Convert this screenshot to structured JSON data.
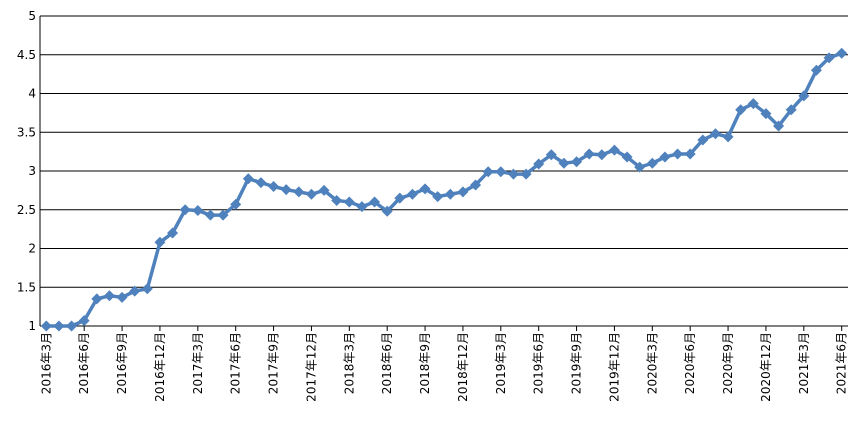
{
  "chart_data": {
    "type": "line",
    "categories": [
      "2016年3月",
      null,
      null,
      "2016年6月",
      null,
      null,
      "2016年9月",
      null,
      null,
      "2016年12月",
      null,
      null,
      "2017年3月",
      null,
      null,
      "2017年6月",
      null,
      null,
      "2017年9月",
      null,
      null,
      "2017年12月",
      null,
      null,
      "2018年3月",
      null,
      null,
      "2018年6月",
      null,
      null,
      "2018年9月",
      null,
      null,
      "2018年12月",
      null,
      null,
      "2019年3月",
      null,
      null,
      "2019年6月",
      null,
      null,
      "2019年9月",
      null,
      null,
      "2019年12月",
      null,
      null,
      "2020年3月",
      null,
      null,
      "2020年6月",
      null,
      null,
      "2020年9月",
      null,
      null,
      "2020年12月",
      null,
      null,
      "2021年3月",
      null,
      null,
      "2021年6月"
    ],
    "values": [
      1.0,
      1.0,
      1.0,
      1.07,
      1.35,
      1.39,
      1.37,
      1.45,
      1.48,
      2.08,
      2.2,
      2.5,
      2.49,
      2.43,
      2.43,
      2.57,
      2.9,
      2.85,
      2.8,
      2.76,
      2.73,
      2.7,
      2.75,
      2.62,
      2.6,
      2.54,
      2.6,
      2.48,
      2.65,
      2.7,
      2.77,
      2.67,
      2.7,
      2.73,
      2.82,
      2.99,
      2.99,
      2.96,
      2.96,
      3.09,
      3.21,
      3.1,
      3.12,
      3.22,
      3.21,
      3.27,
      3.18,
      3.05,
      3.1,
      3.18,
      3.22,
      3.22,
      3.4,
      3.48,
      3.44,
      3.79,
      3.87,
      3.74,
      3.58,
      3.79,
      3.97,
      4.3,
      4.46,
      4.52
    ],
    "color": "#4f81bd",
    "ylim": [
      1,
      5
    ],
    "yticks": [
      1,
      1.5,
      2,
      2.5,
      3,
      3.5,
      4,
      4.5,
      5
    ],
    "grid": true
  }
}
